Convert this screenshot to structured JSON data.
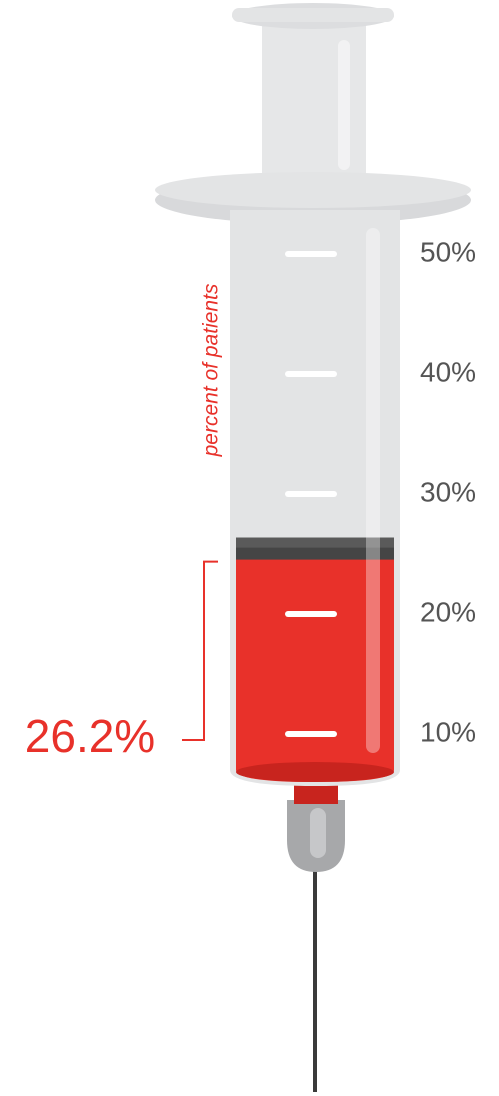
{
  "chart_data": {
    "type": "bar",
    "y_label": "percent of patients",
    "values": [
      26.2
    ],
    "value_labels": [
      "26.2%"
    ],
    "color": "#e8312a",
    "ylim": [
      0,
      50
    ],
    "yticks": [
      {
        "value": 10,
        "label": "10%"
      },
      {
        "value": 20,
        "label": "20%"
      },
      {
        "value": 30,
        "label": "30%"
      },
      {
        "value": 40,
        "label": "40%"
      },
      {
        "value": 50,
        "label": "50%"
      }
    ]
  }
}
